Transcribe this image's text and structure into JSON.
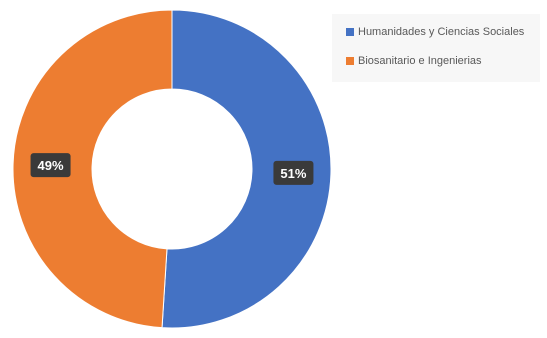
{
  "chart_data": {
    "type": "pie",
    "variant": "donut",
    "title": "",
    "categories": [
      "Humanidades y Ciencias Sociales",
      "Biosanitario e Ingenierias"
    ],
    "values": [
      51,
      49
    ],
    "labels": [
      "51%",
      "49%"
    ],
    "colors": [
      "#4472c4",
      "#ed7d31"
    ],
    "legend_position": "top-right"
  },
  "legend": {
    "items": [
      {
        "label": "Humanidades y Ciencias Sociales",
        "color": "#4472c4"
      },
      {
        "label": "Biosanitario e Ingenierias",
        "color": "#ed7d31"
      }
    ]
  }
}
